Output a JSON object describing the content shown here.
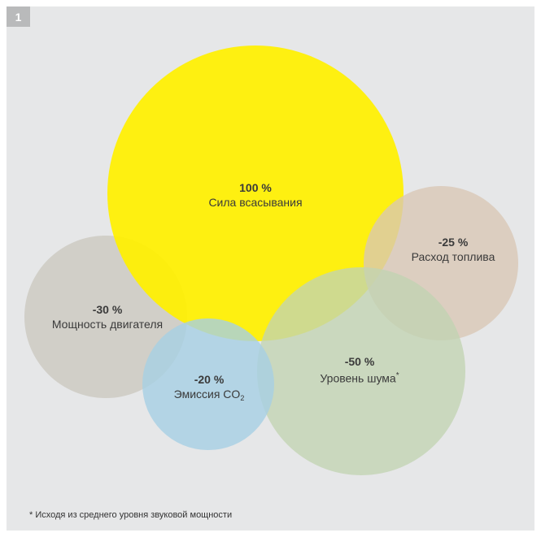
{
  "figure": {
    "number": "1",
    "circles": [
      {
        "id": "engine",
        "value": "-30 %",
        "label": "Мощность двигателя",
        "percent": 30,
        "color": "#cdcac2"
      },
      {
        "id": "suction",
        "value": "100 %",
        "label": "Сила всасывания",
        "percent": 100,
        "color": "#fff000"
      },
      {
        "id": "fuel",
        "value": "-25 %",
        "label": "Расход топлива",
        "percent": 25,
        "color": "#d9c6b5"
      },
      {
        "id": "noise",
        "value": "-50 %",
        "label": "Уровень шума",
        "label_suffix": "*",
        "percent": 50,
        "color": "#c2d4b2"
      },
      {
        "id": "co2",
        "value": "-20 %",
        "label": "Эмиссия CO",
        "label_sub": "2",
        "percent": 20,
        "color": "#a6d0e4"
      }
    ],
    "footnote": "* Исходя из среднего уровня звуковой мощности"
  }
}
